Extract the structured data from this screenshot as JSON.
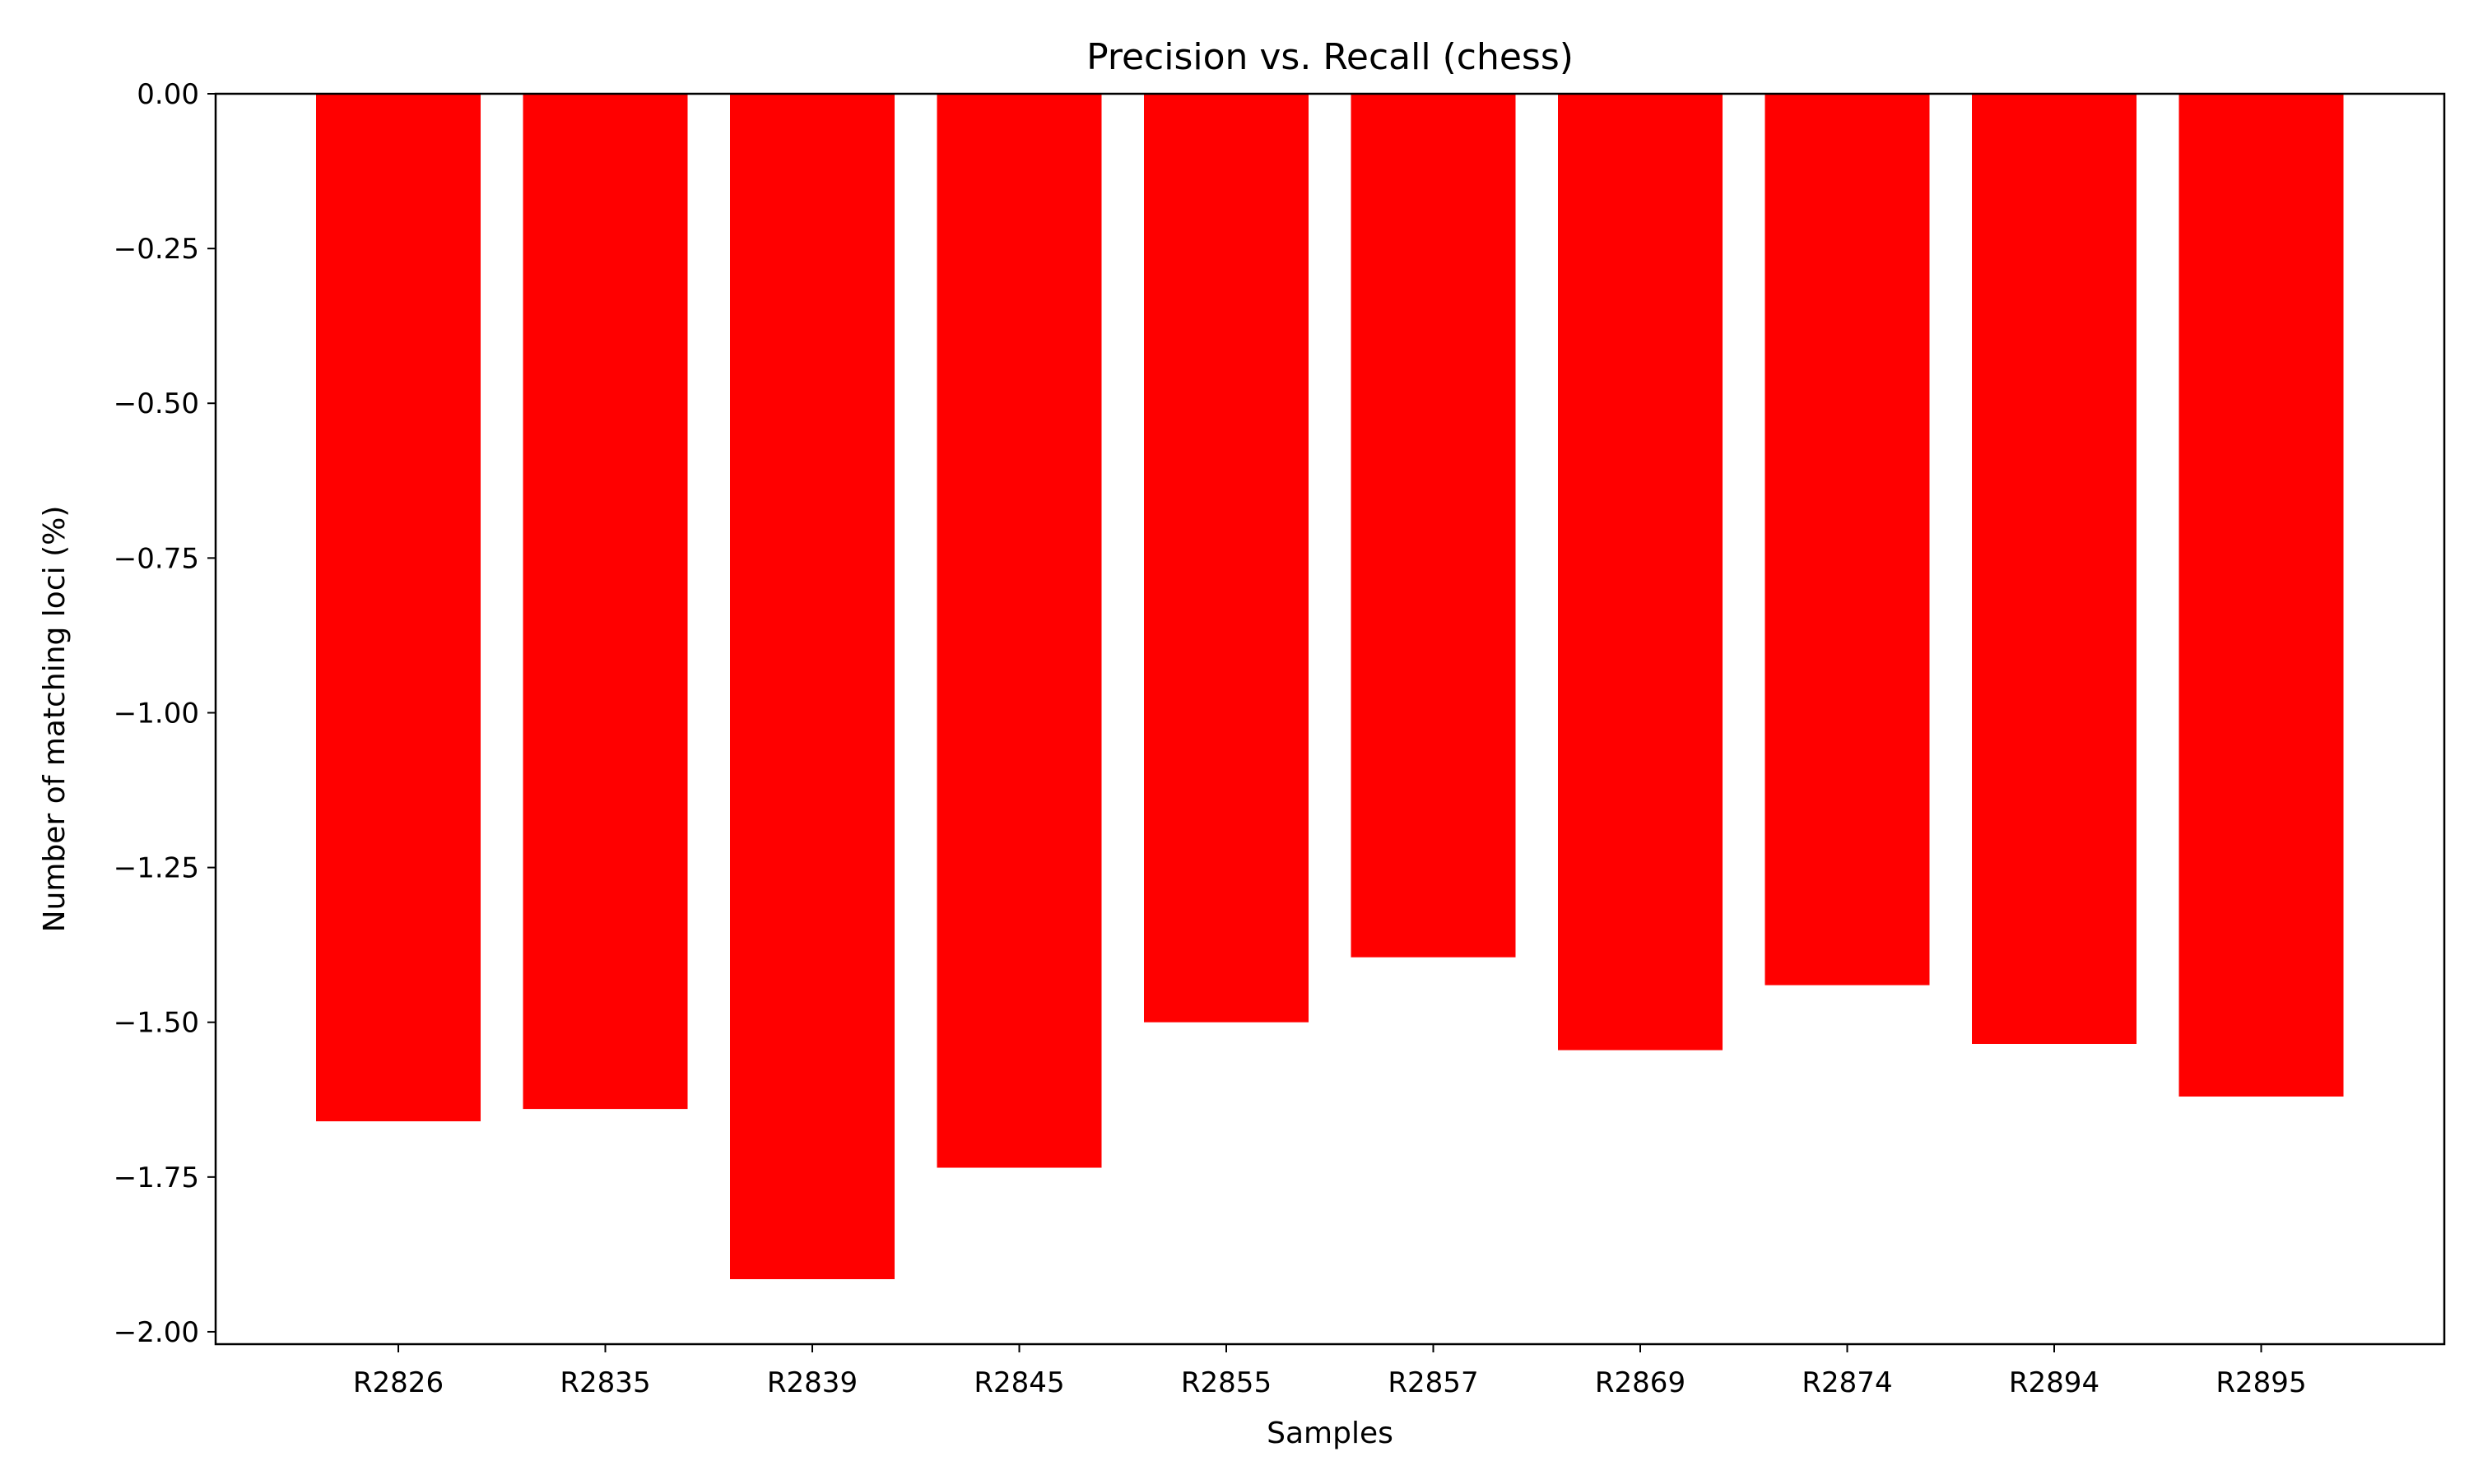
{
  "chart_data": {
    "type": "bar",
    "title": "Precision vs. Recall (chess)",
    "xlabel": "Samples",
    "ylabel": "Number of matching loci (%)",
    "categories": [
      "R2826",
      "R2835",
      "R2839",
      "R2845",
      "R2855",
      "R2857",
      "R2869",
      "R2874",
      "R2894",
      "R2895"
    ],
    "values": [
      -1.66,
      -1.64,
      -1.915,
      -1.735,
      -1.5,
      -1.395,
      -1.545,
      -1.44,
      -1.535,
      -1.62
    ],
    "ylim": [
      -2.02,
      0.0
    ],
    "yticks": [
      0.0,
      -0.25,
      -0.5,
      -0.75,
      -1.0,
      -1.25,
      -1.5,
      -1.75,
      -2.0
    ],
    "ytick_labels": [
      "0.00",
      "−0.25",
      "−0.50",
      "−0.75",
      "−1.00",
      "−1.25",
      "−1.50",
      "−1.75",
      "−2.00"
    ],
    "bar_color": "#ff0000",
    "grid": false,
    "legend": "none"
  }
}
